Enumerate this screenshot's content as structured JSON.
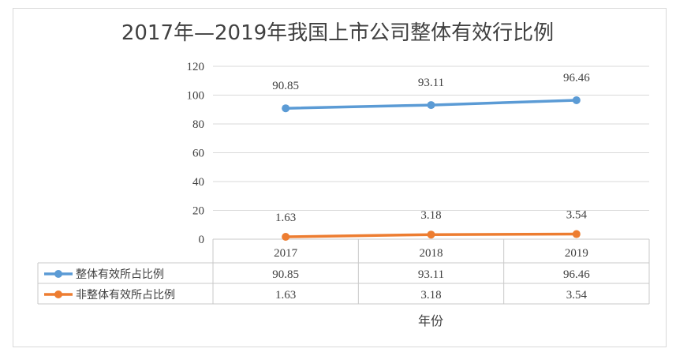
{
  "chart_data": {
    "type": "line",
    "title": "2017年—2019年我国上市公司整体有效行比例",
    "xlabel": "年份",
    "ylabel": "",
    "categories": [
      "2017",
      "2018",
      "2019"
    ],
    "ylim": [
      0,
      120
    ],
    "yticks": [
      0,
      20,
      40,
      60,
      80,
      100,
      120
    ],
    "grid": true,
    "legend": "data-table-left",
    "series": [
      {
        "name": "整体有效所占比例",
        "values": [
          90.85,
          93.11,
          96.46
        ],
        "labels": [
          "90.85",
          "93.11",
          "96.46"
        ],
        "color": "#5b9bd5"
      },
      {
        "name": "非整体有效所占比例",
        "values": [
          1.63,
          3.18,
          3.54
        ],
        "labels": [
          "1.63",
          "3.18",
          "3.54"
        ],
        "color": "#ed7d31"
      }
    ]
  }
}
